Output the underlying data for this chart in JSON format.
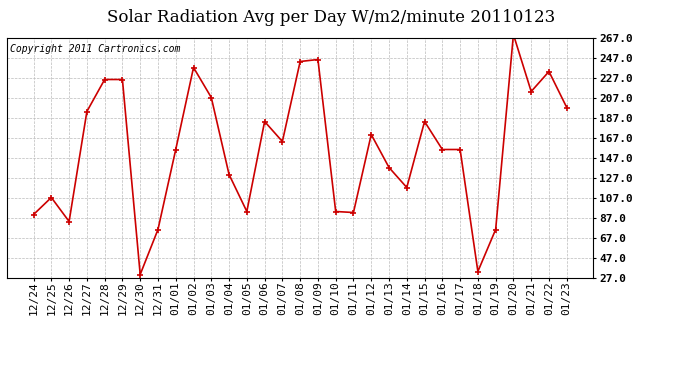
{
  "title": "Solar Radiation Avg per Day W/m2/minute 20110123",
  "copyright_text": "Copyright 2011 Cartronics.com",
  "labels": [
    "12/24",
    "12/25",
    "12/26",
    "12/27",
    "12/28",
    "12/29",
    "12/30",
    "12/31",
    "01/01",
    "01/02",
    "01/03",
    "01/04",
    "01/05",
    "01/06",
    "01/07",
    "01/08",
    "01/09",
    "01/10",
    "01/11",
    "01/12",
    "01/13",
    "01/14",
    "01/15",
    "01/16",
    "01/17",
    "01/18",
    "01/19",
    "01/20",
    "01/21",
    "01/22",
    "01/23"
  ],
  "values": [
    90,
    107,
    83,
    193,
    225,
    225,
    30,
    75,
    155,
    237,
    207,
    130,
    93,
    183,
    163,
    243,
    245,
    93,
    92,
    170,
    137,
    117,
    183,
    155,
    155,
    33,
    75,
    270,
    213,
    233,
    197
  ],
  "ymin": 27.0,
  "ymax": 267.0,
  "yticks": [
    27.0,
    47.0,
    67.0,
    87.0,
    107.0,
    127.0,
    147.0,
    167.0,
    187.0,
    207.0,
    227.0,
    247.0,
    267.0
  ],
  "line_color": "#cc0000",
  "marker": "+",
  "marker_size": 5,
  "marker_linewidth": 1.2,
  "line_width": 1.2,
  "background_color": "#ffffff",
  "plot_bg_color": "#ffffff",
  "grid_color": "#bbbbbb",
  "title_fontsize": 12,
  "tick_fontsize": 8,
  "copyright_fontsize": 7
}
